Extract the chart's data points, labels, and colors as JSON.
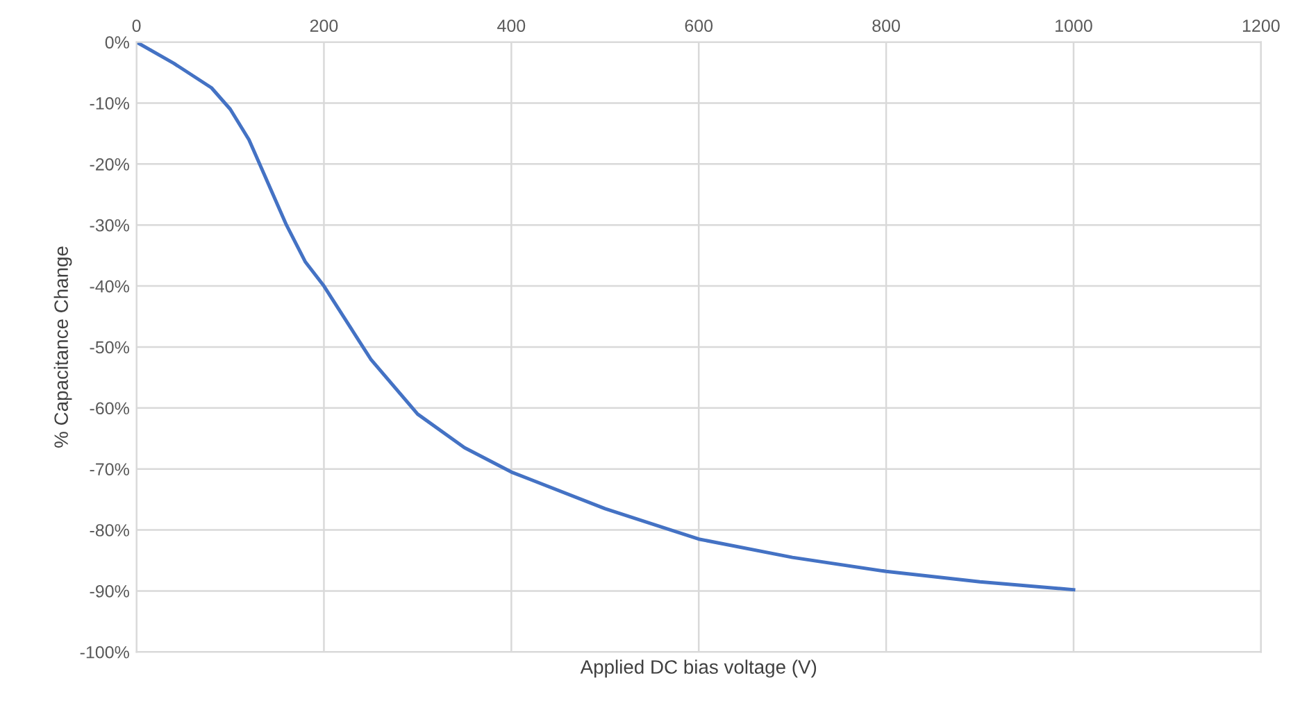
{
  "chart_data": {
    "type": "line",
    "xlabel": "Applied DC bias voltage (V)",
    "ylabel": "% Capacitance Change",
    "x": [
      0,
      40,
      80,
      100,
      120,
      140,
      160,
      180,
      200,
      250,
      300,
      350,
      400,
      500,
      600,
      700,
      800,
      900,
      1000
    ],
    "series": [
      {
        "color": "#4472c4",
        "values": [
          0,
          -3.5,
          -7.5,
          -11,
          -16,
          -23,
          -30,
          -36,
          -40,
          -52,
          -61,
          -66.5,
          -70.5,
          -76.5,
          -81.5,
          -84.5,
          -86.8,
          -88.5,
          -89.8
        ]
      }
    ],
    "xlim": [
      0,
      1200
    ],
    "xticks": [
      0,
      200,
      400,
      600,
      800,
      1000,
      1200
    ],
    "ylim": [
      -100,
      0
    ],
    "yticks": [
      {
        "value": 0,
        "label": "0%"
      },
      {
        "value": -10,
        "label": "-10%"
      },
      {
        "value": -20,
        "label": "-20%"
      },
      {
        "value": -30,
        "label": "-30%"
      },
      {
        "value": -40,
        "label": "-40%"
      },
      {
        "value": -50,
        "label": "-50%"
      },
      {
        "value": -60,
        "label": "-60%"
      },
      {
        "value": -70,
        "label": "-70%"
      },
      {
        "value": -80,
        "label": "-80%"
      },
      {
        "value": -90,
        "label": "-90%"
      },
      {
        "value": -100,
        "label": "-100%"
      }
    ],
    "grid": true,
    "marker": "none",
    "line_style": "solid"
  }
}
